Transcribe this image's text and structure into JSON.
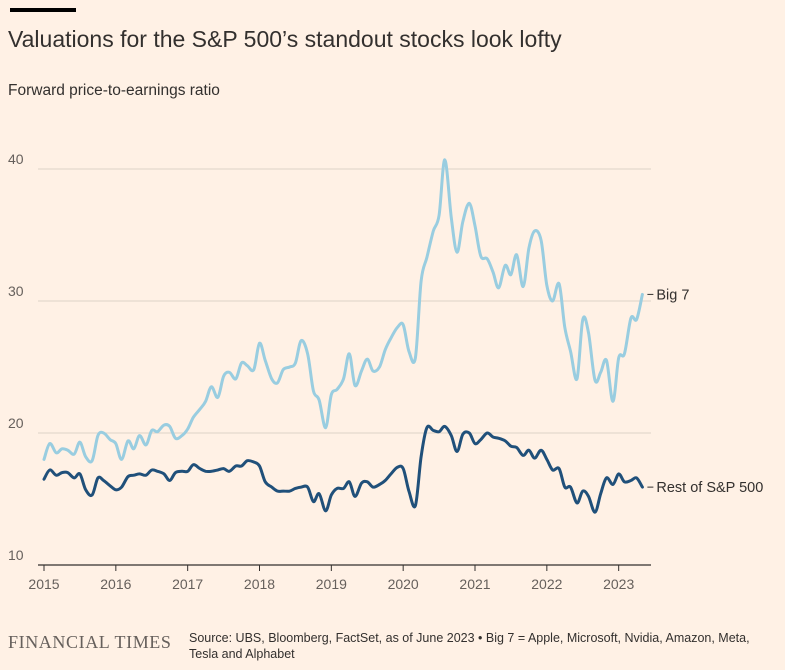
{
  "header": {
    "title": "Valuations for the S&P 500’s standout stocks look lofty",
    "subtitle": "Forward price-to-earnings ratio"
  },
  "footer": {
    "logo": "FINANCIAL TIMES",
    "source": "Source: UBS, Bloomberg, FactSet, as of June 2023 • Big 7 = Apple, Microsoft, Nvidia, Amazon, Meta, Tesla and Alphabet"
  },
  "colors": {
    "background": "#fff1e5",
    "big7": "#99cde0",
    "rest": "#20507a",
    "grid": "#dcd2c8",
    "text": "#33302e"
  },
  "chart_data": {
    "type": "line",
    "xlim": [
      2015,
      2023.45
    ],
    "ylim": [
      10,
      42
    ],
    "x_ticks": [
      2015,
      2016,
      2017,
      2018,
      2019,
      2020,
      2021,
      2022,
      2023
    ],
    "y_ticks": [
      10,
      20,
      30,
      40
    ],
    "grid": true,
    "series": [
      {
        "name": "Big 7",
        "color": "#99cde0",
        "points": [
          [
            2015.0,
            18.0
          ],
          [
            2015.08,
            19.2
          ],
          [
            2015.17,
            18.5
          ],
          [
            2015.25,
            18.8
          ],
          [
            2015.33,
            18.7
          ],
          [
            2015.42,
            18.4
          ],
          [
            2015.5,
            19.3
          ],
          [
            2015.58,
            18.2
          ],
          [
            2015.67,
            17.9
          ],
          [
            2015.75,
            19.8
          ],
          [
            2015.83,
            20.0
          ],
          [
            2015.92,
            19.5
          ],
          [
            2016.0,
            19.2
          ],
          [
            2016.08,
            18.0
          ],
          [
            2016.17,
            19.4
          ],
          [
            2016.25,
            18.8
          ],
          [
            2016.33,
            19.8
          ],
          [
            2016.42,
            19.1
          ],
          [
            2016.5,
            20.2
          ],
          [
            2016.58,
            20.1
          ],
          [
            2016.67,
            20.6
          ],
          [
            2016.75,
            20.5
          ],
          [
            2016.83,
            19.6
          ],
          [
            2016.92,
            19.8
          ],
          [
            2017.0,
            20.3
          ],
          [
            2017.08,
            21.2
          ],
          [
            2017.17,
            21.8
          ],
          [
            2017.25,
            22.4
          ],
          [
            2017.33,
            23.5
          ],
          [
            2017.42,
            22.7
          ],
          [
            2017.5,
            24.3
          ],
          [
            2017.58,
            24.6
          ],
          [
            2017.67,
            24.1
          ],
          [
            2017.75,
            25.3
          ],
          [
            2017.83,
            25.1
          ],
          [
            2017.92,
            24.8
          ],
          [
            2018.0,
            26.8
          ],
          [
            2018.08,
            25.5
          ],
          [
            2018.17,
            24.1
          ],
          [
            2018.25,
            23.8
          ],
          [
            2018.33,
            24.8
          ],
          [
            2018.42,
            25.0
          ],
          [
            2018.5,
            25.3
          ],
          [
            2018.58,
            27.0
          ],
          [
            2018.67,
            26.0
          ],
          [
            2018.75,
            23.2
          ],
          [
            2018.83,
            22.5
          ],
          [
            2018.92,
            20.4
          ],
          [
            2019.0,
            22.9
          ],
          [
            2019.08,
            23.3
          ],
          [
            2019.17,
            24.1
          ],
          [
            2019.25,
            26.0
          ],
          [
            2019.33,
            23.6
          ],
          [
            2019.42,
            24.7
          ],
          [
            2019.5,
            25.6
          ],
          [
            2019.58,
            24.7
          ],
          [
            2019.67,
            25.0
          ],
          [
            2019.75,
            26.3
          ],
          [
            2019.83,
            27.2
          ],
          [
            2019.92,
            28.0
          ],
          [
            2020.0,
            28.2
          ],
          [
            2020.08,
            26.2
          ],
          [
            2020.17,
            25.7
          ],
          [
            2020.25,
            31.5
          ],
          [
            2020.33,
            33.3
          ],
          [
            2020.42,
            35.3
          ],
          [
            2020.5,
            36.5
          ],
          [
            2020.58,
            40.7
          ],
          [
            2020.67,
            36.3
          ],
          [
            2020.75,
            33.7
          ],
          [
            2020.83,
            36.0
          ],
          [
            2020.92,
            37.4
          ],
          [
            2021.0,
            35.7
          ],
          [
            2021.08,
            33.4
          ],
          [
            2021.17,
            33.2
          ],
          [
            2021.25,
            32.2
          ],
          [
            2021.33,
            31.0
          ],
          [
            2021.42,
            32.7
          ],
          [
            2021.5,
            32.0
          ],
          [
            2021.58,
            33.5
          ],
          [
            2021.67,
            31.1
          ],
          [
            2021.75,
            34.0
          ],
          [
            2021.83,
            35.3
          ],
          [
            2021.92,
            34.6
          ],
          [
            2022.0,
            31.2
          ],
          [
            2022.08,
            30.0
          ],
          [
            2022.17,
            31.3
          ],
          [
            2022.25,
            28.0
          ],
          [
            2022.33,
            26.2
          ],
          [
            2022.42,
            24.1
          ],
          [
            2022.5,
            28.6
          ],
          [
            2022.58,
            27.6
          ],
          [
            2022.67,
            24.0
          ],
          [
            2022.75,
            24.6
          ],
          [
            2022.83,
            25.5
          ],
          [
            2022.92,
            22.4
          ],
          [
            2023.0,
            25.7
          ],
          [
            2023.08,
            26.0
          ],
          [
            2023.17,
            28.7
          ],
          [
            2023.25,
            28.6
          ],
          [
            2023.33,
            30.5
          ]
        ]
      },
      {
        "name": "Rest of S&P 500",
        "color": "#20507a",
        "points": [
          [
            2015.0,
            16.5
          ],
          [
            2015.08,
            17.2
          ],
          [
            2015.17,
            16.8
          ],
          [
            2015.25,
            17.0
          ],
          [
            2015.33,
            17.0
          ],
          [
            2015.42,
            16.6
          ],
          [
            2015.5,
            16.9
          ],
          [
            2015.58,
            15.7
          ],
          [
            2015.67,
            15.3
          ],
          [
            2015.75,
            16.6
          ],
          [
            2015.83,
            16.4
          ],
          [
            2015.92,
            16.0
          ],
          [
            2016.0,
            15.7
          ],
          [
            2016.08,
            15.9
          ],
          [
            2016.17,
            16.7
          ],
          [
            2016.25,
            16.8
          ],
          [
            2016.33,
            16.9
          ],
          [
            2016.42,
            16.8
          ],
          [
            2016.5,
            17.2
          ],
          [
            2016.58,
            17.1
          ],
          [
            2016.67,
            16.9
          ],
          [
            2016.75,
            16.4
          ],
          [
            2016.83,
            17.0
          ],
          [
            2016.92,
            17.1
          ],
          [
            2017.0,
            17.1
          ],
          [
            2017.08,
            17.6
          ],
          [
            2017.17,
            17.3
          ],
          [
            2017.25,
            17.1
          ],
          [
            2017.33,
            17.1
          ],
          [
            2017.42,
            17.2
          ],
          [
            2017.5,
            17.3
          ],
          [
            2017.58,
            17.1
          ],
          [
            2017.67,
            17.5
          ],
          [
            2017.75,
            17.5
          ],
          [
            2017.83,
            17.9
          ],
          [
            2017.92,
            17.8
          ],
          [
            2018.0,
            17.5
          ],
          [
            2018.08,
            16.3
          ],
          [
            2018.17,
            15.9
          ],
          [
            2018.25,
            15.6
          ],
          [
            2018.33,
            15.6
          ],
          [
            2018.42,
            15.6
          ],
          [
            2018.5,
            15.8
          ],
          [
            2018.58,
            15.9
          ],
          [
            2018.67,
            15.9
          ],
          [
            2018.75,
            14.8
          ],
          [
            2018.83,
            15.4
          ],
          [
            2018.92,
            14.1
          ],
          [
            2019.0,
            15.3
          ],
          [
            2019.08,
            15.8
          ],
          [
            2019.17,
            15.8
          ],
          [
            2019.25,
            16.3
          ],
          [
            2019.33,
            15.2
          ],
          [
            2019.42,
            16.2
          ],
          [
            2019.5,
            16.3
          ],
          [
            2019.58,
            15.9
          ],
          [
            2019.67,
            16.1
          ],
          [
            2019.75,
            16.4
          ],
          [
            2019.83,
            16.9
          ],
          [
            2019.92,
            17.4
          ],
          [
            2020.0,
            17.3
          ],
          [
            2020.08,
            15.6
          ],
          [
            2020.17,
            14.5
          ],
          [
            2020.25,
            18.2
          ],
          [
            2020.33,
            20.4
          ],
          [
            2020.42,
            20.2
          ],
          [
            2020.5,
            20.1
          ],
          [
            2020.58,
            20.5
          ],
          [
            2020.67,
            19.8
          ],
          [
            2020.75,
            18.6
          ],
          [
            2020.83,
            19.9
          ],
          [
            2020.92,
            20.0
          ],
          [
            2021.0,
            19.2
          ],
          [
            2021.08,
            19.5
          ],
          [
            2021.17,
            20.0
          ],
          [
            2021.25,
            19.7
          ],
          [
            2021.33,
            19.6
          ],
          [
            2021.42,
            19.4
          ],
          [
            2021.5,
            19.0
          ],
          [
            2021.58,
            18.9
          ],
          [
            2021.67,
            18.3
          ],
          [
            2021.75,
            18.7
          ],
          [
            2021.83,
            18.1
          ],
          [
            2021.92,
            18.7
          ],
          [
            2022.0,
            18.0
          ],
          [
            2022.08,
            17.2
          ],
          [
            2022.17,
            17.3
          ],
          [
            2022.25,
            15.9
          ],
          [
            2022.33,
            15.9
          ],
          [
            2022.42,
            14.7
          ],
          [
            2022.5,
            15.6
          ],
          [
            2022.58,
            15.2
          ],
          [
            2022.67,
            14.0
          ],
          [
            2022.75,
            15.4
          ],
          [
            2022.83,
            16.6
          ],
          [
            2022.92,
            16.1
          ],
          [
            2023.0,
            16.9
          ],
          [
            2023.08,
            16.3
          ],
          [
            2023.17,
            16.4
          ],
          [
            2023.25,
            16.6
          ],
          [
            2023.33,
            15.9
          ]
        ]
      }
    ]
  }
}
